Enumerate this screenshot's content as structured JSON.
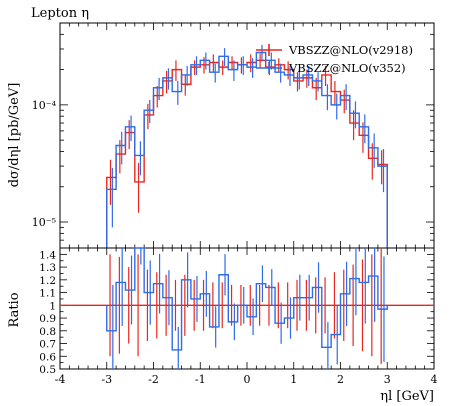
{
  "chart_data": {
    "type": "line",
    "title": "Lepton η",
    "xlabel": "ηl [GeV]",
    "ylabel": "dσ/dηl [pb/GeV]",
    "ratio_ylabel": "Ratio",
    "xlim": [
      -4,
      4
    ],
    "ylim": [
      6e-06,
      0.0005
    ],
    "yscale": "log",
    "ratio_ylim": [
      0.5,
      1.45
    ],
    "x_ticks": [
      "-4",
      "-3",
      "-2",
      "-1",
      "0",
      "1",
      "2",
      "3",
      "4"
    ],
    "y_ticks": [
      "10⁻⁵",
      "10⁻⁴"
    ],
    "ratio_ticks": [
      "0.5",
      "0.6",
      "0.7",
      "0.8",
      "0.9",
      "1",
      "1.1",
      "1.2",
      "1.3",
      "1.4"
    ],
    "legend_position": "top-right",
    "bin_edges": [
      -3.0,
      -2.8,
      -2.6,
      -2.4,
      -2.2,
      -2.0,
      -1.8,
      -1.6,
      -1.4,
      -1.2,
      -1.0,
      -0.8,
      -0.6,
      -0.4,
      -0.2,
      0.0,
      0.2,
      0.4,
      0.6,
      0.8,
      1.0,
      1.2,
      1.4,
      1.6,
      1.8,
      2.0,
      2.2,
      2.4,
      2.6,
      2.8,
      3.0
    ],
    "series": [
      {
        "name": "VBSZZ@NLO(v2918)",
        "color": "#e8281e",
        "values": [
          2.4e-05,
          3.8e-05,
          5.8e-05,
          2.2e-05,
          8.2e-05,
          0.00012,
          0.00016,
          0.0002,
          0.00015,
          0.00021,
          0.00022,
          0.00023,
          0.00021,
          0.00023,
          0.00022,
          0.00023,
          0.00024,
          0.00021,
          0.00022,
          0.0002,
          0.00016,
          0.00017,
          0.00014,
          0.00018,
          0.00013,
          0.00011,
          7e-05,
          5.5e-05,
          3.5e-05,
          3.1e-05
        ],
        "errors": [
          1e-05,
          1.2e-05,
          1.6e-05,
          1e-05,
          2e-05,
          2.5e-05,
          3.5e-05,
          4e-05,
          3e-05,
          3e-05,
          3.5e-05,
          4e-05,
          3e-05,
          3e-05,
          3.5e-05,
          4e-05,
          3.5e-05,
          3e-05,
          3e-05,
          3.5e-05,
          3e-05,
          3e-05,
          3e-05,
          3.5e-05,
          3e-05,
          2.5e-05,
          2e-05,
          1.6e-05,
          1.2e-05,
          1e-05
        ]
      },
      {
        "name": "VBSZZ@NLO(v352)",
        "color": "#2f6bea",
        "values": [
          1.9e-05,
          4.5e-05,
          6.5e-05,
          3.7e-05,
          9e-05,
          0.00014,
          0.00017,
          0.00013,
          0.00018,
          0.00022,
          0.00024,
          0.00019,
          0.00026,
          0.0002,
          0.00022,
          0.00021,
          0.00028,
          0.00024,
          0.00019,
          0.00018,
          0.00017,
          0.00018,
          0.00016,
          0.00012,
          0.0001,
          0.00012,
          8.5e-05,
          6.5e-05,
          4.3e-05,
          3e-05
        ],
        "errors": [
          1e-05,
          1.4e-05,
          1.6e-05,
          1.2e-05,
          2e-05,
          3e-05,
          3.5e-05,
          3e-05,
          3.5e-05,
          4e-05,
          4e-05,
          3.5e-05,
          4.5e-05,
          4e-05,
          4e-05,
          4e-05,
          4.5e-05,
          4e-05,
          3.5e-05,
          3.5e-05,
          3.5e-05,
          3.5e-05,
          3e-05,
          3e-05,
          2.5e-05,
          3e-05,
          2.2e-05,
          1.8e-05,
          1.4e-05,
          1.2e-05
        ]
      }
    ],
    "ratio": {
      "reference_value": 1.0,
      "values": [
        0.8,
        1.18,
        1.12,
        1.68,
        1.1,
        1.17,
        1.06,
        0.65,
        1.2,
        1.05,
        1.09,
        0.83,
        1.24,
        0.87,
        1.0,
        0.91,
        1.17,
        1.14,
        0.86,
        0.9,
        1.06,
        1.06,
        1.14,
        0.67,
        0.77,
        1.09,
        1.21,
        1.18,
        1.23,
        0.97
      ],
      "errors": [
        0.4,
        0.38,
        0.3,
        0.4,
        0.28,
        0.26,
        0.24,
        0.2,
        0.24,
        0.2,
        0.2,
        0.18,
        0.18,
        0.16,
        0.16,
        0.16,
        0.16,
        0.16,
        0.18,
        0.18,
        0.2,
        0.2,
        0.22,
        0.22,
        0.26,
        0.28,
        0.32,
        0.36,
        0.4,
        0.46
      ]
    }
  }
}
